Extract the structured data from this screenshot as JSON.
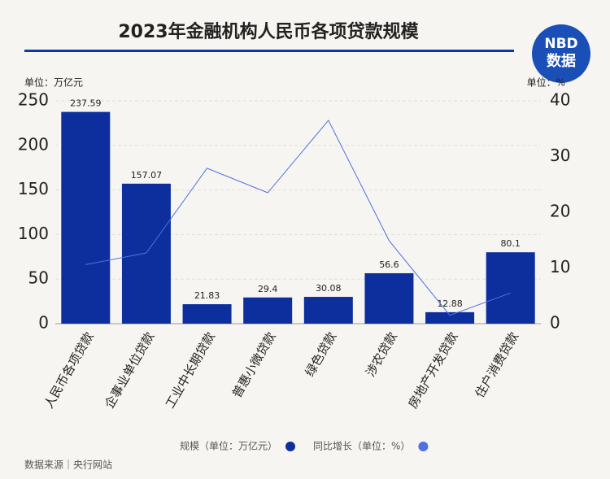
{
  "chart_data": {
    "type": "bar-line",
    "title": "2023年金融机构人民币各项贷款规模",
    "ylabel": "单位：万亿元",
    "y2label": "单位：%",
    "categories": [
      "人民币各项贷款",
      "企事业单位贷款",
      "工业中长期贷款",
      "普惠小微贷款",
      "绿色贷款",
      "涉农贷款",
      "房地产开发贷款",
      "住户消费贷款"
    ],
    "series": [
      {
        "name": "规模（单位：万亿元）",
        "color": "#0d2f9e",
        "values": [
          237.59,
          157.07,
          21.83,
          29.4,
          30.08,
          56.6,
          12.88,
          80.1
        ]
      },
      {
        "name": "同比增长（单位：%）",
        "color": "#4f6fe3",
        "axis": "y2",
        "values": [
          10.6,
          12.7,
          27.9,
          23.5,
          36.5,
          14.9,
          1.5,
          5.5
        ]
      }
    ],
    "ylim": [
      0,
      250
    ],
    "yticks": [
      0,
      50,
      100,
      150,
      200,
      250
    ],
    "y2lim": [
      0,
      40
    ],
    "y2ticks": [
      0,
      10,
      20,
      30,
      40
    ],
    "grid": true,
    "source": "数据来源｜央行网站"
  },
  "logo": {
    "brand": "NBD",
    "label": "数据"
  }
}
